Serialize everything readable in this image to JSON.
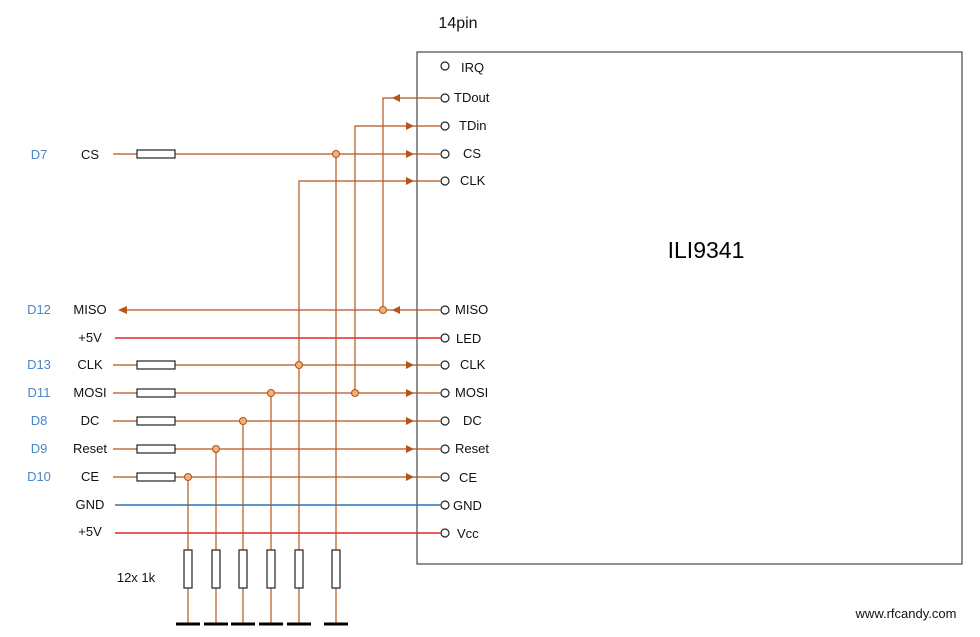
{
  "title": "14pin",
  "chip_label": "ILI9341",
  "resistor_note": "12x 1k",
  "watermark": "www.rfcandy.com",
  "colors": {
    "signal_wire": "#b4561a",
    "power_wire": "#e0262b",
    "ground_wire": "#2b73b8",
    "arduino_pin": "#4a86c8"
  },
  "display_pins": [
    "IRQ",
    "TDout",
    "TDin",
    "CS",
    "CLK",
    "MISO",
    "LED",
    "CLK",
    "MOSI",
    "DC",
    "Reset",
    "CE",
    "GND",
    "Vcc"
  ],
  "left_signals": [
    {
      "pin": "D7",
      "label": "CS"
    },
    {
      "pin": "D12",
      "label": "MISO"
    },
    {
      "pin": "",
      "label": "+5V"
    },
    {
      "pin": "D13",
      "label": "CLK"
    },
    {
      "pin": "D11",
      "label": "MOSI"
    },
    {
      "pin": "D8",
      "label": "DC"
    },
    {
      "pin": "D9",
      "label": "Reset"
    },
    {
      "pin": "D10",
      "label": "CE"
    },
    {
      "pin": "",
      "label": "GND"
    },
    {
      "pin": "",
      "label": "+5V"
    }
  ]
}
